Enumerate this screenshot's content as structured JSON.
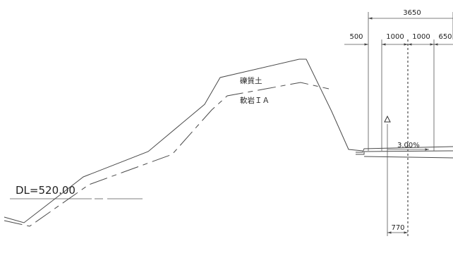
{
  "datum": {
    "label": "DL=520.00"
  },
  "layers": [
    {
      "label": "礫質土"
    },
    {
      "label": "軟岩ＩＡ"
    }
  ],
  "slope": {
    "label": "3.00%"
  },
  "dimensions": {
    "total_width": "3650",
    "segments": [
      "500",
      "1000",
      "1000",
      "650"
    ],
    "offset": "770"
  }
}
